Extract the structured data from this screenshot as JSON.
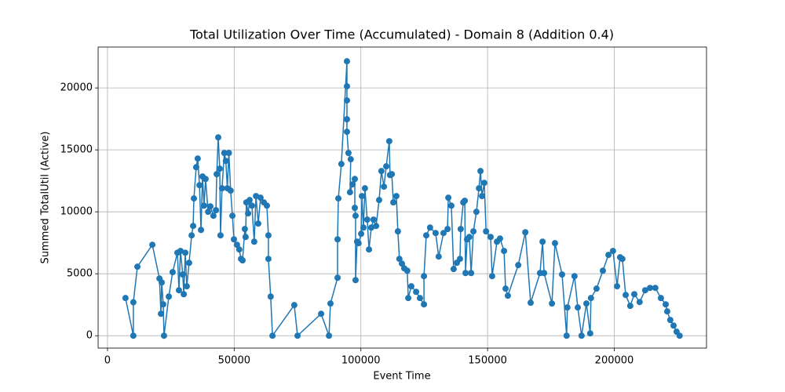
{
  "chart_data": {
    "type": "line",
    "title": "Total Utilization Over Time (Accumulated) - Domain 8 (Addition 0.4)",
    "x_label": "Event Time",
    "y_label": "Summed TotalUtil (Active)",
    "color": "#1f77b4",
    "grid": true,
    "xlim": [
      -3700,
      236400
    ],
    "ylim": [
      -1000,
      23300
    ],
    "xticks": [
      0,
      50000,
      100000,
      150000,
      200000
    ],
    "yticks": [
      0,
      5000,
      10000,
      15000,
      20000
    ],
    "x": [
      7100,
      10200,
      10200,
      11800,
      17700,
      20500,
      21100,
      21400,
      22000,
      22300,
      24200,
      25700,
      27600,
      28200,
      28800,
      29700,
      30100,
      30700,
      31300,
      32200,
      33200,
      33800,
      34100,
      35000,
      35600,
      36300,
      36900,
      37500,
      38100,
      38700,
      39700,
      40600,
      41800,
      42800,
      43100,
      43700,
      44300,
      44600,
      45200,
      46100,
      46700,
      47300,
      47900,
      48600,
      49300,
      49900,
      51100,
      52000,
      52700,
      53300,
      54200,
      54500,
      54800,
      55500,
      56100,
      57000,
      57900,
      58600,
      59500,
      60400,
      61700,
      62900,
      63500,
      63500,
      64400,
      65100,
      73700,
      75000,
      84300,
      87400,
      88000,
      90800,
      90800,
      91100,
      92300,
      94500,
      94500,
      94500,
      94500,
      94500,
      95100,
      96000,
      95700,
      96700,
      97600,
      97600,
      97900,
      97900,
      98500,
      99100,
      100100,
      100400,
      101000,
      101600,
      102500,
      103200,
      104100,
      105000,
      106000,
      107200,
      108100,
      109100,
      110000,
      111200,
      111500,
      112200,
      112800,
      114000,
      114600,
      115200,
      116200,
      117100,
      118300,
      118700,
      119900,
      121800,
      123300,
      124900,
      124900,
      125800,
      127300,
      129500,
      130700,
      132600,
      134200,
      134500,
      135700,
      136600,
      137900,
      139100,
      139400,
      140400,
      141000,
      141300,
      141900,
      142800,
      143500,
      144400,
      145600,
      146600,
      147200,
      147800,
      148700,
      149400,
      151200,
      151800,
      153700,
      154900,
      156500,
      157100,
      158000,
      162100,
      164900,
      167000,
      170700,
      171700,
      172300,
      175400,
      176600,
      179400,
      181200,
      181500,
      184300,
      185600,
      187100,
      189000,
      190500,
      190800,
      193000,
      195500,
      197700,
      199500,
      201100,
      202300,
      203200,
      204500,
      206300,
      207900,
      210000,
      212200,
      214100,
      216200,
      218400,
      220300,
      220900,
      222100,
      223400,
      224600,
      225800
    ],
    "values": [
      3040,
      0,
      2700,
      5570,
      7340,
      4620,
      1770,
      4300,
      2530,
      0,
      3160,
      5130,
      6700,
      3670,
      6840,
      4940,
      3350,
      6700,
      3990,
      5880,
      8100,
      8860,
      11080,
      13600,
      14300,
      12150,
      8540,
      12850,
      10500,
      12650,
      10000,
      10440,
      9680,
      10130,
      13040,
      16010,
      13480,
      8100,
      11900,
      14750,
      14110,
      11900,
      14750,
      11710,
      9680,
      7780,
      7340,
      6960,
      6200,
      6080,
      8610,
      7970,
      10760,
      9870,
      10950,
      10500,
      7590,
      11270,
      9050,
      11140,
      10760,
      10500,
      8100,
      6200,
      3160,
      0,
      2470,
      0,
      1770,
      0,
      2600,
      4680,
      7780,
      11080,
      13860,
      22150,
      20130,
      18990,
      17470,
      16460,
      14750,
      14240,
      11580,
      12220,
      12650,
      10320,
      9680,
      4490,
      7590,
      7470,
      8230,
      11270,
      8730,
      11900,
      9370,
      6960,
      8730,
      9370,
      8860,
      10950,
      13290,
      12030,
      13670,
      15700,
      12970,
      13040,
      10760,
      11270,
      8420,
      6200,
      5820,
      5440,
      5250,
      3040,
      3990,
      3540,
      3040,
      2530,
      4810,
      8100,
      8730,
      8290,
      6390,
      8290,
      8610,
      11140,
      10500,
      5380,
      5890,
      6200,
      8610,
      10760,
      10890,
      5060,
      7780,
      7970,
      5060,
      8420,
      10000,
      11900,
      13290,
      11270,
      12340,
      8420,
      7970,
      4810,
      7590,
      7840,
      6840,
      3800,
      3230,
      5700,
      8350,
      2660,
      5060,
      7590,
      5060,
      2600,
      7470,
      4940,
      0,
      2280,
      4810,
      2280,
      0,
      2600,
      190,
      3040,
      3800,
      5250,
      6520,
      6840,
      3990,
      6330,
      6200,
      3290,
      2410,
      3350,
      2720,
      3670,
      3860,
      3860,
      3040,
      2530,
      1960,
      1270,
      820,
      320,
      0
    ]
  }
}
